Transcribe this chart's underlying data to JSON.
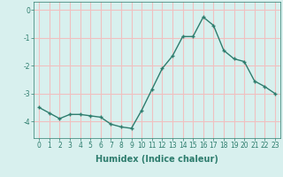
{
  "x": [
    0,
    1,
    2,
    3,
    4,
    5,
    6,
    7,
    8,
    9,
    10,
    11,
    12,
    13,
    14,
    15,
    16,
    17,
    18,
    19,
    20,
    21,
    22,
    23
  ],
  "y": [
    -3.5,
    -3.7,
    -3.9,
    -3.75,
    -3.75,
    -3.8,
    -3.85,
    -4.1,
    -4.2,
    -4.25,
    -3.6,
    -2.85,
    -2.1,
    -1.65,
    -0.95,
    -0.95,
    -0.25,
    -0.55,
    -1.45,
    -1.75,
    -1.85,
    -2.55,
    -2.75,
    -3.0
  ],
  "line_color": "#2e7d6e",
  "marker": "+",
  "marker_size": 3.5,
  "line_width": 1.0,
  "xlabel": "Humidex (Indice chaleur)",
  "xlabel_fontsize": 7,
  "xlabel_bold": true,
  "ylim": [
    -4.6,
    0.3
  ],
  "yticks": [
    0,
    -1,
    -2,
    -3,
    -4
  ],
  "xticks": [
    0,
    1,
    2,
    3,
    4,
    5,
    6,
    7,
    8,
    9,
    10,
    11,
    12,
    13,
    14,
    15,
    16,
    17,
    18,
    19,
    20,
    21,
    22,
    23
  ],
  "bg_color": "#d8f0ee",
  "grid_color": "#f0c0c0",
  "tick_fontsize": 5.5,
  "fig_width": 3.2,
  "fig_height": 2.0
}
